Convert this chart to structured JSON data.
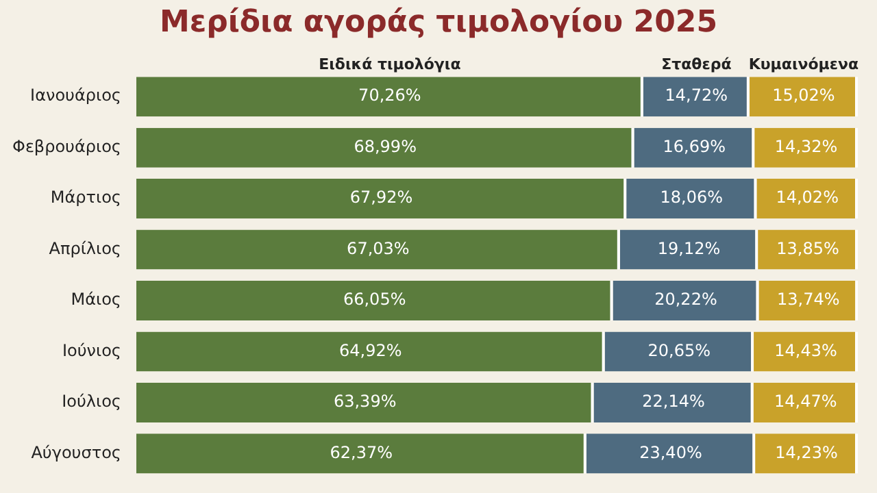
{
  "chart_data": {
    "type": "bar",
    "orientation": "horizontal",
    "stacked": true,
    "title": "Μερίδια αγοράς τιμολογίου 2025",
    "categories": [
      "Ιανουάριος",
      "Φεβρουάριος",
      "Μάρτιος",
      "Απρίλιος",
      "Μάιος",
      "Ιούνιος",
      "Ιούλιος",
      "Αύγουστος"
    ],
    "xlim": [
      0,
      100
    ],
    "tick_labels": "y",
    "series": [
      {
        "name": "Ειδικά τιμολόγια",
        "color": "#5b7c3d",
        "values": [
          70.26,
          68.99,
          67.92,
          67.03,
          66.05,
          64.92,
          63.39,
          62.37
        ],
        "value_labels": [
          "70,26%",
          "68,99%",
          "67,92%",
          "67,03%",
          "66,05%",
          "64,92%",
          "63,39%",
          "62,37%"
        ]
      },
      {
        "name": "Σταθερά",
        "color": "#4e6b80",
        "values": [
          14.72,
          16.69,
          18.06,
          19.12,
          20.22,
          20.65,
          22.14,
          23.4
        ],
        "value_labels": [
          "14,72%",
          "16,69%",
          "18,06%",
          "19,12%",
          "20,22%",
          "20,65%",
          "22,14%",
          "23,40%"
        ]
      },
      {
        "name": "Κυμαινόμενα",
        "color": "#c9a22a",
        "values": [
          15.02,
          14.32,
          14.02,
          13.85,
          13.74,
          14.43,
          14.47,
          14.23
        ],
        "value_labels": [
          "15,02%",
          "14,32%",
          "14,02%",
          "13,85%",
          "13,74%",
          "14,43%",
          "14,47%",
          "14,23%"
        ]
      }
    ]
  }
}
